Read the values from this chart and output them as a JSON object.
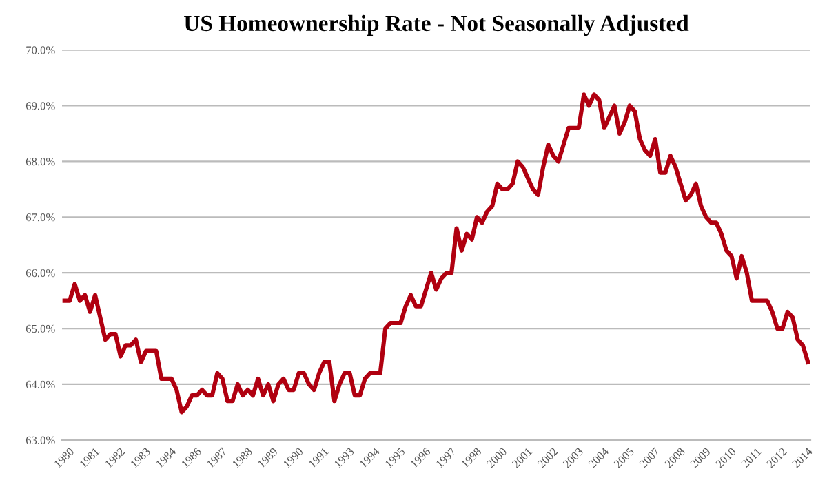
{
  "chart_data": {
    "type": "line",
    "title": "US Homeownership Rate - Not Seasonally Adjusted",
    "categories": [
      "1980",
      null,
      null,
      null,
      null,
      "1981",
      null,
      null,
      null,
      null,
      "1982",
      null,
      null,
      null,
      null,
      "1983",
      null,
      null,
      null,
      null,
      "1984",
      null,
      null,
      null,
      null,
      "1986",
      null,
      null,
      null,
      null,
      "1987",
      null,
      null,
      null,
      null,
      "1988",
      null,
      null,
      null,
      null,
      "1989",
      null,
      null,
      null,
      null,
      "1990",
      null,
      null,
      null,
      null,
      "1991",
      null,
      null,
      null,
      null,
      "1993",
      null,
      null,
      null,
      null,
      "1994",
      null,
      null,
      null,
      null,
      "1995",
      null,
      null,
      null,
      null,
      "1996",
      null,
      null,
      null,
      null,
      "1997",
      null,
      null,
      null,
      null,
      "1998",
      null,
      null,
      null,
      null,
      "2000",
      null,
      null,
      null,
      null,
      "2001",
      null,
      null,
      null,
      null,
      "2002",
      null,
      null,
      null,
      null,
      "2003",
      null,
      null,
      null,
      null,
      "2004",
      null,
      null,
      null,
      null,
      "2005",
      null,
      null,
      null,
      null,
      "2007",
      null,
      null,
      null,
      null,
      "2008",
      null,
      null,
      null,
      null,
      "2009",
      null,
      null,
      null,
      null,
      "2010",
      null,
      null,
      null,
      null,
      "2011",
      null,
      null,
      null,
      null,
      "2012",
      null,
      null,
      null,
      null,
      "2014",
      null
    ],
    "series": [
      {
        "color": "#b00010",
        "values": [
          65.5,
          65.5,
          65.8,
          65.5,
          65.6,
          65.3,
          65.6,
          65.2,
          64.8,
          64.9,
          64.9,
          64.5,
          64.7,
          64.7,
          64.8,
          64.4,
          64.6,
          64.6,
          64.6,
          64.1,
          64.1,
          64.1,
          63.9,
          63.5,
          63.6,
          63.8,
          63.8,
          63.9,
          63.8,
          63.8,
          64.2,
          64.1,
          63.7,
          63.7,
          64.0,
          63.8,
          63.9,
          63.8,
          64.1,
          63.8,
          64.0,
          63.7,
          64.0,
          64.1,
          63.9,
          63.9,
          64.2,
          64.2,
          64.0,
          63.9,
          64.2,
          64.4,
          64.4,
          63.7,
          64.0,
          64.2,
          64.2,
          63.8,
          63.8,
          64.1,
          64.2,
          64.2,
          64.2,
          65.0,
          65.1,
          65.1,
          65.1,
          65.4,
          65.6,
          65.4,
          65.4,
          65.7,
          66.0,
          65.7,
          65.9,
          66.0,
          66.0,
          66.8,
          66.4,
          66.7,
          66.6,
          67.0,
          66.9,
          67.1,
          67.2,
          67.6,
          67.5,
          67.5,
          67.6,
          68.0,
          67.9,
          67.7,
          67.5,
          67.4,
          67.9,
          68.3,
          68.1,
          68.0,
          68.3,
          68.6,
          68.6,
          68.6,
          69.2,
          69.0,
          69.2,
          69.1,
          68.6,
          68.8,
          69.0,
          68.5,
          68.7,
          69.0,
          68.9,
          68.4,
          68.2,
          68.1,
          68.4,
          67.8,
          67.8,
          68.1,
          67.9,
          67.6,
          67.3,
          67.4,
          67.6,
          67.2,
          67.0,
          66.9,
          66.9,
          66.7,
          66.4,
          66.3,
          65.9,
          66.3,
          66.0,
          65.5,
          65.5,
          65.5,
          65.5,
          65.3,
          65.0,
          65.0,
          65.3,
          65.2,
          64.8,
          64.7,
          64.4
        ]
      }
    ],
    "ylim": [
      63,
      70
    ],
    "yticks": [
      {
        "value": 63,
        "label": "63.0%"
      },
      {
        "value": 64,
        "label": "64.0%"
      },
      {
        "value": 65,
        "label": "65.0%"
      },
      {
        "value": 66,
        "label": "66.0%"
      },
      {
        "value": 67,
        "label": "67.0%"
      },
      {
        "value": 68,
        "label": "68.0%"
      },
      {
        "value": 69,
        "label": "69.0%"
      },
      {
        "value": 70,
        "label": "70.0%"
      }
    ],
    "grid": "y",
    "legend": false,
    "marker": "none",
    "line_style": "solid"
  }
}
